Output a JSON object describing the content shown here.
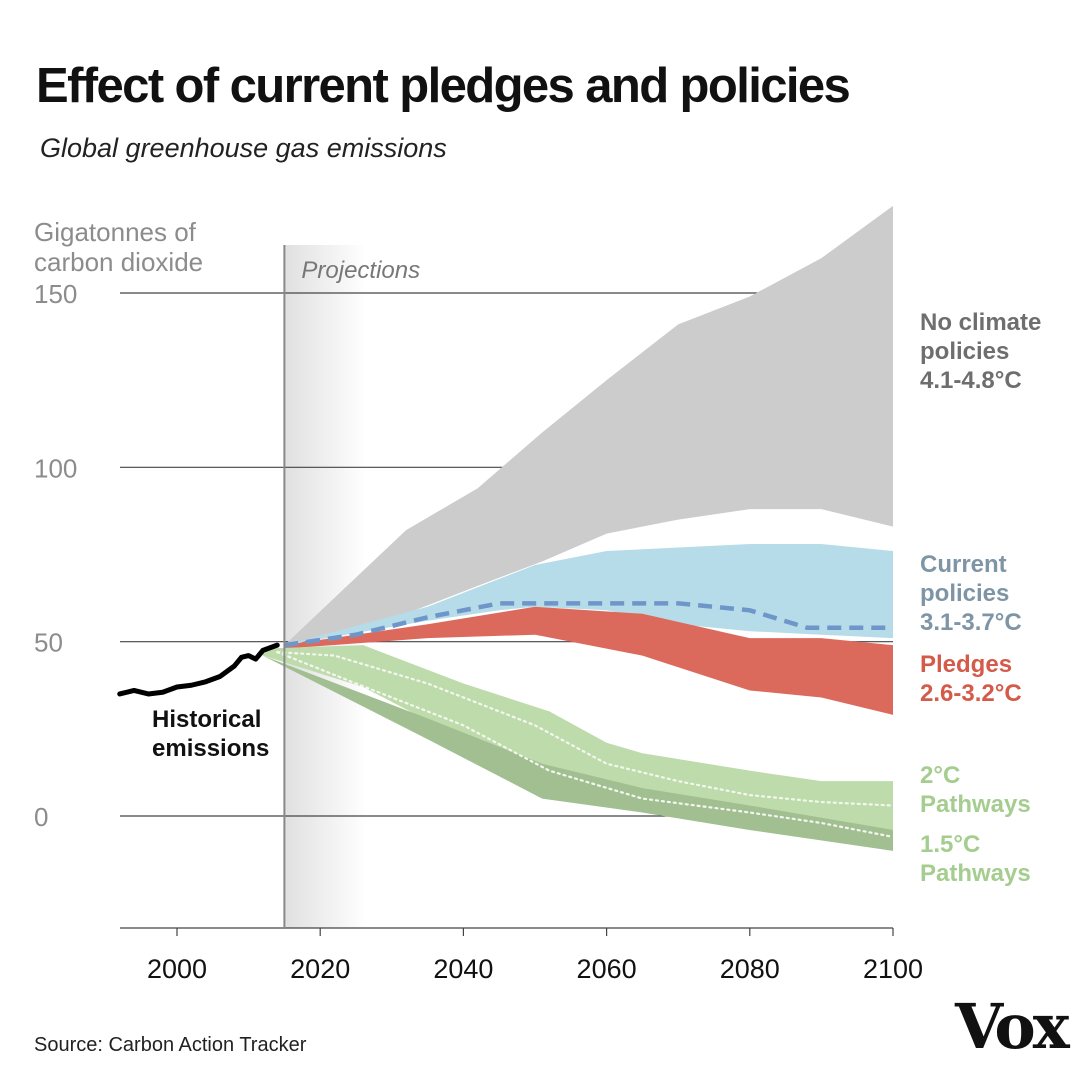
{
  "title": "Effect of current pledges and policies",
  "subtitle": "Global greenhouse gas emissions",
  "source": "Source: Carbon Action Tracker",
  "logo": "Vox",
  "colors": {
    "gridline": "#444444",
    "axis_text": "#8c8c8c",
    "x_tick_text": "#111111",
    "projection_line": "#888888",
    "projection_shade": "#e3e3e3",
    "no_policy_band": "#cccccc",
    "no_policy_label": "#6e6e6e",
    "current_band": "#b6dcea",
    "current_median": "#6f96c9",
    "current_label": "#7e95a6",
    "pledges_band": "#dc6a5c",
    "pledges_label": "#d45a4a",
    "two_c_band": "#bedbab",
    "two_c_label": "#a4cd8f",
    "one_five_band": "#a2bf92",
    "pathway_median": "#f4f7f0",
    "historical_line": "#000000"
  },
  "chart_data": {
    "type": "area",
    "title": "Effect of current pledges and policies",
    "subtitle": "Global greenhouse gas emissions",
    "ylabel": "Gigatonnes of carbon dioxide",
    "xlim": [
      1992,
      2100
    ],
    "ylim": [
      -32,
      150
    ],
    "x_ticks": [
      2000,
      2020,
      2040,
      2060,
      2080,
      2100
    ],
    "y_ticks": [
      0,
      50,
      100,
      150
    ],
    "grid": true,
    "projection_start": 2015,
    "projection_label": "Projections",
    "series": [
      {
        "name": "No climate policies",
        "label_lines": [
          "No climate",
          "policies",
          "4.1-4.8°C"
        ],
        "kind": "band",
        "x": [
          2015,
          2032,
          2042,
          2051,
          2060,
          2070,
          2080,
          2090,
          2100
        ],
        "upper": [
          49,
          82,
          94,
          110,
          125,
          141,
          149,
          160,
          175
        ],
        "lower": [
          49,
          58,
          66,
          73,
          81,
          85,
          88,
          88,
          83
        ]
      },
      {
        "name": "Current policies",
        "label_lines": [
          "Current",
          "policies",
          "3.1-3.7°C"
        ],
        "kind": "band",
        "x": [
          2015,
          2035,
          2045,
          2050,
          2060,
          2070,
          2080,
          2090,
          2100
        ],
        "upper": [
          49,
          60,
          68,
          72,
          76,
          77,
          78,
          78,
          76
        ],
        "lower": [
          49,
          56,
          59,
          60,
          59,
          55,
          53,
          52,
          51
        ]
      },
      {
        "name": "Current policies median",
        "kind": "line",
        "x": [
          2015,
          2025,
          2035,
          2045,
          2050,
          2055,
          2060,
          2065,
          2070,
          2080,
          2088,
          2095,
          2100
        ],
        "values": [
          49,
          52,
          57,
          61,
          61,
          61,
          61,
          61,
          61,
          59,
          54,
          54,
          54
        ]
      },
      {
        "name": "Pledges",
        "label_lines": [
          "Pledges",
          "2.6-3.2°C"
        ],
        "kind": "band",
        "x": [
          2015,
          2035,
          2050,
          2065,
          2080,
          2090,
          2100
        ],
        "upper": [
          49,
          55,
          60,
          58,
          51,
          51,
          49
        ],
        "lower": [
          48,
          51,
          52,
          46,
          36,
          34,
          29
        ]
      },
      {
        "name": "2°C Pathways",
        "label_lines": [
          "2°C",
          "Pathways"
        ],
        "kind": "band",
        "x": [
          2012,
          2026,
          2040,
          2052,
          2060,
          2065,
          2080,
          2090,
          2100
        ],
        "upper": [
          48,
          49,
          38,
          30,
          21,
          18,
          13,
          10,
          10
        ],
        "lower": [
          46,
          37,
          22,
          10,
          3,
          1,
          -4,
          -7,
          -10
        ]
      },
      {
        "name": "1.5°C Pathways",
        "label_lines": [
          "1.5°C",
          "Pathways"
        ],
        "kind": "band",
        "x": [
          2012,
          2035,
          2051,
          2065,
          2080,
          2100
        ],
        "upper": [
          46,
          28,
          15,
          8,
          3,
          -4
        ],
        "lower": [
          46,
          22,
          5,
          1,
          -4,
          -10
        ]
      },
      {
        "name": "2°C Pathways median",
        "kind": "line",
        "x": [
          2014,
          2022,
          2035,
          2050,
          2060,
          2070,
          2080,
          2090,
          2100
        ],
        "values": [
          47,
          46,
          38,
          26,
          15,
          10,
          6,
          4,
          3
        ]
      },
      {
        "name": "1.5°C Pathways median",
        "kind": "line",
        "x": [
          2014,
          2025,
          2040,
          2052,
          2065,
          2080,
          2090,
          2100
        ],
        "values": [
          47,
          38,
          26,
          13,
          5,
          1,
          -2,
          -6
        ]
      },
      {
        "name": "Historical emissions",
        "label_lines": [
          "Historical",
          "emissions"
        ],
        "kind": "line",
        "x": [
          1992,
          1994,
          1996,
          1998,
          2000,
          2002,
          2004,
          2006,
          2008,
          2009,
          2010,
          2011,
          2012,
          2014
        ],
        "values": [
          35,
          36,
          35,
          35.5,
          37,
          37.5,
          38.5,
          40,
          43,
          45.5,
          46,
          45,
          47.5,
          49
        ]
      }
    ]
  }
}
